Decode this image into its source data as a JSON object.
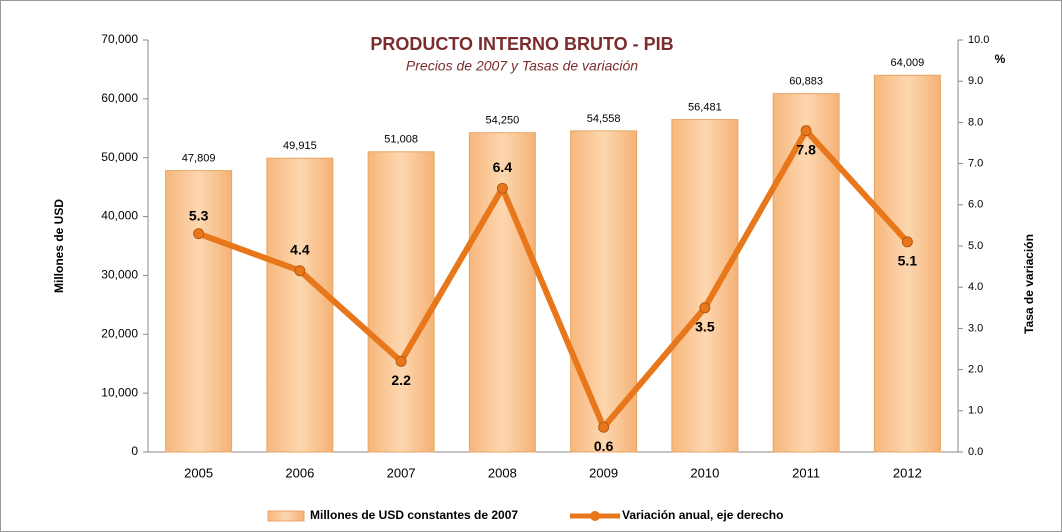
{
  "chart_data": {
    "type": "combo",
    "title": "PRODUCTO INTERNO BRUTO - PIB",
    "subtitle": "Precios de 2007 y Tasas de variación",
    "y_label": "Millones de USD",
    "y2_label": "Tasa de variación",
    "y2_unit": "%",
    "categories": [
      "2005",
      "2006",
      "2007",
      "2008",
      "2009",
      "2010",
      "2011",
      "2012"
    ],
    "series": [
      {
        "name": "Millones de USD constantes de 2007",
        "type": "bar",
        "color": "#f9c896",
        "values": [
          47809,
          49915,
          51008,
          54250,
          54558,
          56481,
          60883,
          64009
        ],
        "value_labels": [
          "47,809",
          "49,915",
          "51,008",
          "54,250",
          "54,558",
          "56,481",
          "60,883",
          "64,009"
        ]
      },
      {
        "name": "Variación anual, eje derecho",
        "type": "line",
        "axis": "y2",
        "color": "#e8771c",
        "values": [
          5.3,
          4.4,
          2.2,
          6.4,
          0.6,
          3.5,
          7.8,
          5.1
        ]
      }
    ],
    "ylim": [
      0,
      70000
    ],
    "yticks": [
      0,
      {
        "value": 10000,
        "label": "10,000"
      },
      {
        "value": 20000,
        "label": "20,000"
      },
      {
        "value": 30000,
        "label": "30,000"
      },
      {
        "value": 40000,
        "label": "40,000"
      },
      {
        "value": 50000,
        "label": "50,000"
      },
      {
        "value": 60000,
        "label": "60,000"
      },
      {
        "value": 70000,
        "label": "70,000"
      }
    ],
    "y2lim": [
      0,
      10
    ],
    "y2ticks": [
      {
        "value": 0,
        "label": "0.0"
      },
      {
        "value": 1,
        "label": "1.0"
      },
      {
        "value": 2,
        "label": "2.0"
      },
      {
        "value": 3,
        "label": "3.0"
      },
      {
        "value": 4,
        "label": "4.0"
      },
      {
        "value": 5,
        "label": "5.0"
      },
      {
        "value": 6,
        "label": "6.0"
      },
      {
        "value": 7,
        "label": "7.0"
      },
      {
        "value": 8,
        "label": "8.0"
      },
      {
        "value": 9,
        "label": "9.0"
      },
      {
        "value": 10,
        "label": "10.0"
      }
    ]
  }
}
